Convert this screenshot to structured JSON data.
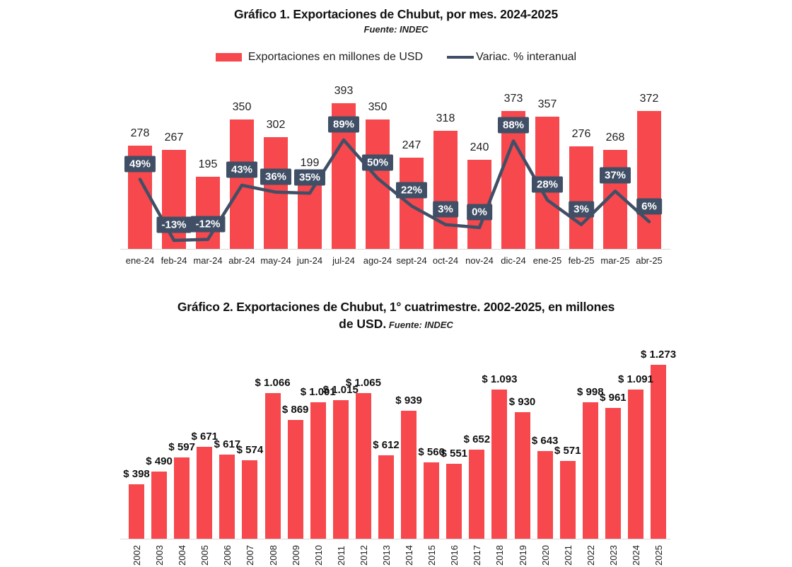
{
  "colors": {
    "bar_red": "#f6484d",
    "line_slate": "#414f66",
    "axis_gray": "#d8d8d8",
    "badge_text": "#ffffff"
  },
  "chart1": {
    "title": "Gráfico 1. Exportaciones de Chubut, por mes. 2024-2025",
    "source": "Fuente: INDEC",
    "legend": {
      "bars": "Exportaciones en millones de USD",
      "line": "Variac. % interanual"
    }
  },
  "chart2": {
    "title_line1": "Gráfico 2. Exportaciones de Chubut, 1° cuatrimestre. 2002-2025, en millones",
    "title_line2": "de USD.",
    "source": "Fuente: INDEC"
  },
  "chart_data": [
    {
      "id": "chart1",
      "type": "bar",
      "title": "Gráfico 1. Exportaciones de Chubut, por mes. 2024-2025",
      "subtitle": "Fuente: INDEC",
      "legend_position": "top",
      "grid": false,
      "categories": [
        "ene-24",
        "feb-24",
        "mar-24",
        "abr-24",
        "may-24",
        "jun-24",
        "jul-24",
        "ago-24",
        "sept-24",
        "oct-24",
        "nov-24",
        "dic-24",
        "ene-25",
        "feb-25",
        "mar-25",
        "abr-25"
      ],
      "series": [
        {
          "name": "Exportaciones en millones de USD",
          "type": "bar",
          "values": [
            278,
            267,
            195,
            350,
            302,
            199,
            393,
            350,
            247,
            318,
            240,
            373,
            357,
            276,
            268,
            372
          ]
        },
        {
          "name": "Variac. % interanual",
          "type": "line",
          "values": [
            49,
            -13,
            -12,
            43,
            36,
            35,
            89,
            50,
            22,
            3,
            0,
            88,
            28,
            3,
            37,
            6
          ],
          "labels": [
            "49%",
            "-13%",
            "-12%",
            "43%",
            "36%",
            "35%",
            "89%",
            "50%",
            "22%",
            "3%",
            "0%",
            "88%",
            "28%",
            "3%",
            "37%",
            "6%"
          ]
        }
      ]
    },
    {
      "id": "chart2",
      "type": "bar",
      "title": "Gráfico 2. Exportaciones de Chubut, 1° cuatrimestre. 2002-2025, en millones de USD.",
      "subtitle": "Fuente: INDEC",
      "grid": false,
      "categories": [
        "2002",
        "2003",
        "2004",
        "2005",
        "2006",
        "2007",
        "2008",
        "2009",
        "2010",
        "2011",
        "2012",
        "2013",
        "2014",
        "2015",
        "2016",
        "2017",
        "2018",
        "2019",
        "2020",
        "2021",
        "2022",
        "2023",
        "2024",
        "2025"
      ],
      "values": [
        398,
        490,
        597,
        671,
        617,
        574,
        1066,
        869,
        1001,
        1015,
        1065,
        612,
        939,
        560,
        551,
        652,
        1093,
        930,
        643,
        571,
        998,
        961,
        1091,
        1273
      ],
      "labels": [
        "$ 398",
        "$ 490",
        "$ 597",
        "$ 671",
        "$ 617",
        "$ 574",
        "$ 1.066",
        "$ 869",
        "$ 1.001",
        "$ 1.015",
        "$ 1.065",
        "$ 612",
        "$ 939",
        "$ 560",
        "$ 551",
        "$ 652",
        "$ 1.093",
        "$ 930",
        "$ 643",
        "$ 571",
        "$ 998",
        "$ 961",
        "$ 1.091",
        "$ 1.273"
      ]
    }
  ]
}
